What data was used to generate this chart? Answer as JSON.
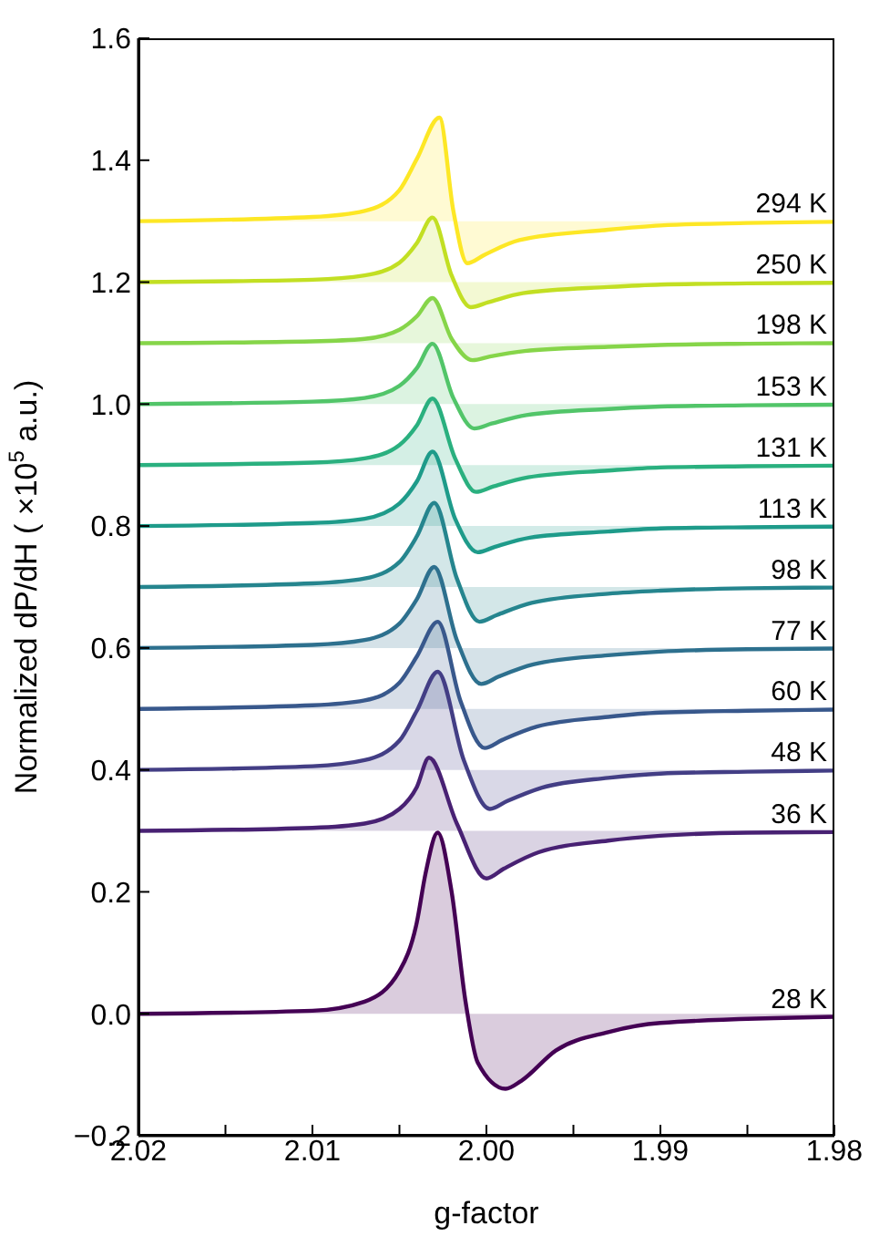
{
  "chart_data": {
    "type": "area",
    "xlabel": "g-factor",
    "ylabel": "Normalized dP/dH ( ×10$^{5}$ a.u.)",
    "xlim": [
      2.02,
      1.98
    ],
    "xticks": [
      {
        "value": 2.02,
        "label": "2.02"
      },
      {
        "value": 2.015,
        "label": null
      },
      {
        "value": 2.01,
        "label": "2.01"
      },
      {
        "value": 2.005,
        "label": null
      },
      {
        "value": 2.0,
        "label": "2.00"
      },
      {
        "value": 1.995,
        "label": null
      },
      {
        "value": 1.99,
        "label": "1.99"
      },
      {
        "value": 1.985,
        "label": null
      },
      {
        "value": 1.98,
        "label": "1.98"
      }
    ],
    "ylim": [
      -0.2,
      1.6
    ],
    "yticks": [
      {
        "value": -0.2,
        "label": "−0.2"
      },
      {
        "value": 0,
        "label": "0.0"
      },
      {
        "value": 0.2,
        "label": "0.2"
      },
      {
        "value": 0.4,
        "label": "0.4"
      },
      {
        "value": 0.6,
        "label": "0.6"
      },
      {
        "value": 0.8,
        "label": "0.8"
      },
      {
        "value": 1.0,
        "label": "1.0"
      },
      {
        "value": 1.2,
        "label": "1.2"
      },
      {
        "value": 1.4,
        "label": "1.4"
      },
      {
        "value": 1.6,
        "label": "1.6"
      }
    ],
    "legend": false,
    "grid": false,
    "series": [
      {
        "name": "28 K",
        "color": "#440154",
        "x": [
          2.02,
          2.01,
          2.007,
          2.005,
          2.004,
          2.0035,
          2.0028,
          2.002,
          2.0012,
          2.0005,
          1.9989,
          1.998,
          1.996,
          1.993,
          1.99,
          1.98
        ],
        "values": [
          0,
          0.005,
          0.02,
          0.07,
          0.15,
          0.23,
          0.297,
          0.2,
          0.02,
          -0.08,
          -0.123,
          -0.11,
          -0.06,
          -0.03,
          -0.015,
          -0.005
        ]
      },
      {
        "name": "36 K",
        "color": "#482173",
        "x": [
          2.02,
          2.01,
          2.007,
          2.005,
          2.004,
          2.0033,
          2.0017,
          2.0,
          1.999,
          1.997,
          1.993,
          1.99,
          1.985,
          1.98
        ],
        "values": [
          0.3,
          0.305,
          0.312,
          0.336,
          0.372,
          0.42,
          0.312,
          0.222,
          0.238,
          0.265,
          0.284,
          0.292,
          0.297,
          0.298
        ]
      },
      {
        "name": "48 K",
        "color": "#433e85",
        "x": [
          2.02,
          2.01,
          2.007,
          2.005,
          2.004,
          2.0028,
          2.0013,
          1.9998,
          1.9988,
          1.9968,
          1.993,
          1.99,
          1.985,
          1.98
        ],
        "values": [
          0.4,
          0.406,
          0.416,
          0.448,
          0.497,
          0.561,
          0.416,
          0.336,
          0.349,
          0.371,
          0.387,
          0.394,
          0.397,
          0.399
        ]
      },
      {
        "name": "60 K",
        "color": "#38588c",
        "x": [
          2.02,
          2.01,
          2.007,
          2.005,
          2.004,
          2.0028,
          2.0015,
          2.0001,
          1.9991,
          1.9971,
          1.993,
          1.99,
          1.985,
          1.98
        ],
        "values": [
          0.5,
          0.506,
          0.514,
          0.543,
          0.586,
          0.643,
          0.514,
          0.436,
          0.449,
          0.471,
          0.487,
          0.494,
          0.497,
          0.499
        ]
      },
      {
        "name": "77 K",
        "color": "#2d708e",
        "x": [
          2.02,
          2.01,
          2.007,
          2.005,
          2.004,
          2.003,
          2.0017,
          2.0003,
          1.9993,
          1.9973,
          1.993,
          1.99,
          1.985,
          1.98
        ],
        "values": [
          0.6,
          0.605,
          0.613,
          0.64,
          0.68,
          0.733,
          0.613,
          0.541,
          0.553,
          0.573,
          0.588,
          0.594,
          0.598,
          0.599
        ]
      },
      {
        "name": "98 K",
        "color": "#25858e",
        "x": [
          2.02,
          2.01,
          2.007,
          2.005,
          2.004,
          2.003,
          2.0017,
          2.0004,
          1.9994,
          1.9974,
          1.993,
          1.99,
          1.985,
          1.98
        ],
        "values": [
          0.7,
          0.706,
          0.714,
          0.741,
          0.783,
          0.838,
          0.714,
          0.643,
          0.654,
          0.674,
          0.689,
          0.694,
          0.698,
          0.699
        ]
      },
      {
        "name": "113 K",
        "color": "#1e9b8a",
        "x": [
          2.02,
          2.01,
          2.007,
          2.005,
          2.004,
          2.0031,
          2.0018,
          2.0005,
          1.9995,
          1.9975,
          1.993,
          1.99,
          1.985,
          1.98
        ],
        "values": [
          0.8,
          0.805,
          0.812,
          0.837,
          0.873,
          0.922,
          0.812,
          0.757,
          0.766,
          0.781,
          0.791,
          0.796,
          0.798,
          0.799
        ]
      },
      {
        "name": "131 K",
        "color": "#2ab07f",
        "x": [
          2.02,
          2.01,
          2.007,
          2.005,
          2.004,
          2.0031,
          2.0018,
          2.0006,
          1.9996,
          1.9976,
          1.993,
          1.99,
          1.985,
          1.98
        ],
        "values": [
          0.9,
          0.904,
          0.911,
          0.933,
          0.965,
          1.009,
          0.911,
          0.856,
          0.865,
          0.88,
          0.891,
          0.896,
          0.898,
          0.899
        ]
      },
      {
        "name": "153 K",
        "color": "#52c569",
        "x": [
          2.02,
          2.01,
          2.007,
          2.005,
          2.004,
          2.0031,
          2.0019,
          2.0007,
          1.9997,
          1.9977,
          1.993,
          1.99,
          1.985,
          1.98
        ],
        "values": [
          1.0,
          1.004,
          1.01,
          1.03,
          1.059,
          1.099,
          1.01,
          0.96,
          0.968,
          0.982,
          0.992,
          0.996,
          0.998,
          0.999
        ]
      },
      {
        "name": "198 K",
        "color": "#86d549",
        "x": [
          2.02,
          2.01,
          2.007,
          2.005,
          2.004,
          2.0031,
          2.002,
          2.0008,
          1.9998,
          1.9978,
          1.993,
          1.99,
          1.985,
          1.98
        ],
        "values": [
          1.1,
          1.103,
          1.107,
          1.122,
          1.144,
          1.174,
          1.107,
          1.072,
          1.078,
          1.087,
          1.094,
          1.097,
          1.099,
          1.1
        ]
      },
      {
        "name": "250 K",
        "color": "#c2df23",
        "x": [
          2.02,
          2.01,
          2.007,
          2.005,
          2.004,
          2.0031,
          2.002,
          2.0009,
          1.9999,
          1.9979,
          1.993,
          1.99,
          1.985,
          1.98
        ],
        "values": [
          1.2,
          1.204,
          1.211,
          1.232,
          1.264,
          1.306,
          1.211,
          1.159,
          1.167,
          1.182,
          1.192,
          1.196,
          1.198,
          1.199
        ]
      },
      {
        "name": "294 K",
        "color": "#fde725",
        "x": [
          2.02,
          2.01,
          2.007,
          2.005,
          2.004,
          2.0027,
          2.0019,
          2.0011,
          2.0001,
          1.9981,
          1.993,
          1.99,
          1.985,
          1.98
        ],
        "values": [
          1.3,
          1.307,
          1.317,
          1.351,
          1.402,
          1.47,
          1.317,
          1.231,
          1.245,
          1.269,
          1.286,
          1.293,
          1.297,
          1.299
        ]
      }
    ]
  }
}
